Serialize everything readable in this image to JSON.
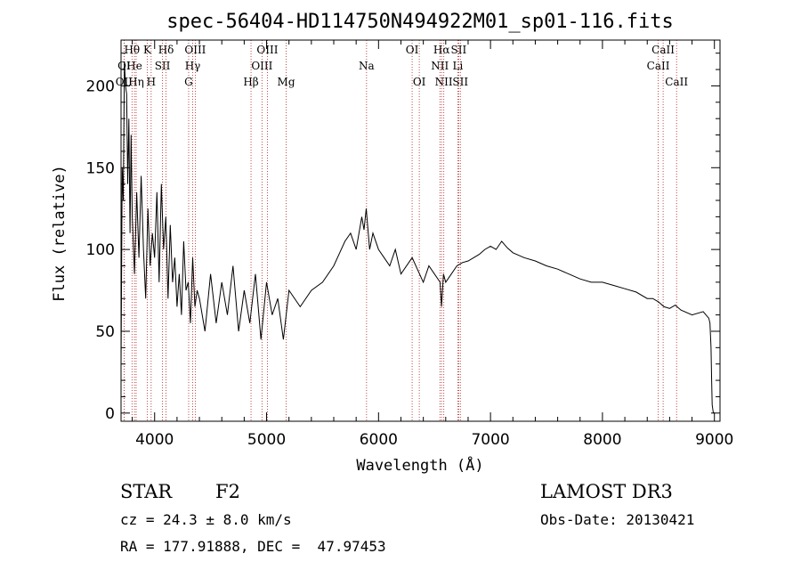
{
  "chart_data": {
    "type": "line",
    "title": "spec-56404-HD114750N494922M01_sp01-116.fits",
    "xlabel": "Wavelength (Å)",
    "ylabel": "Flux (relative)",
    "xlim": [
      3700,
      9050
    ],
    "ylim": [
      -5,
      228
    ],
    "xticks": [
      4000,
      5000,
      6000,
      7000,
      8000,
      9000
    ],
    "yticks": [
      0,
      50,
      100,
      150,
      200
    ],
    "series": [
      {
        "name": "flux",
        "x": [
          3700,
          3710,
          3720,
          3730,
          3740,
          3750,
          3760,
          3770,
          3780,
          3790,
          3800,
          3820,
          3840,
          3860,
          3880,
          3900,
          3920,
          3940,
          3960,
          3980,
          4000,
          4020,
          4040,
          4060,
          4080,
          4100,
          4120,
          4140,
          4160,
          4180,
          4200,
          4220,
          4240,
          4260,
          4280,
          4300,
          4320,
          4340,
          4360,
          4380,
          4400,
          4450,
          4500,
          4550,
          4600,
          4650,
          4700,
          4750,
          4800,
          4850,
          4900,
          4950,
          5000,
          5050,
          5100,
          5150,
          5200,
          5300,
          5400,
          5500,
          5600,
          5700,
          5750,
          5800,
          5850,
          5870,
          5890,
          5920,
          5950,
          6000,
          6050,
          6100,
          6150,
          6200,
          6300,
          6400,
          6450,
          6500,
          6550,
          6563,
          6580,
          6600,
          6650,
          6700,
          6750,
          6800,
          6850,
          6900,
          6950,
          7000,
          7050,
          7100,
          7150,
          7200,
          7300,
          7400,
          7500,
          7600,
          7700,
          7800,
          7900,
          8000,
          8100,
          8200,
          8300,
          8400,
          8450,
          8500,
          8550,
          8600,
          8650,
          8700,
          8800,
          8900,
          8950,
          8960,
          8970,
          8975,
          8980,
          8990
        ],
        "values": [
          28,
          150,
          130,
          215,
          200,
          195,
          140,
          180,
          110,
          170,
          120,
          85,
          135,
          95,
          145,
          100,
          70,
          125,
          90,
          110,
          95,
          135,
          80,
          140,
          100,
          120,
          70,
          115,
          80,
          95,
          65,
          85,
          60,
          105,
          75,
          80,
          55,
          95,
          65,
          75,
          70,
          50,
          85,
          55,
          80,
          60,
          90,
          50,
          75,
          55,
          85,
          45,
          80,
          60,
          70,
          45,
          75,
          65,
          75,
          80,
          90,
          105,
          110,
          100,
          120,
          112,
          125,
          100,
          110,
          100,
          95,
          90,
          100,
          85,
          95,
          80,
          90,
          85,
          80,
          65,
          85,
          80,
          85,
          90,
          92,
          93,
          95,
          97,
          100,
          102,
          100,
          105,
          101,
          98,
          95,
          93,
          90,
          88,
          85,
          82,
          80,
          80,
          78,
          76,
          74,
          70,
          70,
          68,
          65,
          64,
          66,
          63,
          60,
          62,
          58,
          55,
          40,
          20,
          5,
          0
        ]
      }
    ],
    "spectral_lines": [
      {
        "label": "OII",
        "x": 3727,
        "row": 2
      },
      {
        "label": "OI",
        "x": 3727,
        "row": 1
      },
      {
        "label": "Hθ",
        "x": 3798,
        "row": 0
      },
      {
        "label": "He",
        "x": 3820,
        "row": 1
      },
      {
        "label": "Hη",
        "x": 3835,
        "row": 2
      },
      {
        "label": "K",
        "x": 3934,
        "row": 0
      },
      {
        "label": "H",
        "x": 3969,
        "row": 2
      },
      {
        "label": "SII",
        "x": 4070,
        "row": 1
      },
      {
        "label": "Hδ",
        "x": 4102,
        "row": 0
      },
      {
        "label": "OIII",
        "x": 4363,
        "row": 0
      },
      {
        "label": "Hγ",
        "x": 4340,
        "row": 1
      },
      {
        "label": "G",
        "x": 4304,
        "row": 2
      },
      {
        "label": "Hβ",
        "x": 4861,
        "row": 2
      },
      {
        "label": "OIII",
        "x": 5007,
        "row": 0
      },
      {
        "label": "OIII",
        "x": 4959,
        "row": 1
      },
      {
        "label": "Mg",
        "x": 5175,
        "row": 2
      },
      {
        "label": "Na",
        "x": 5893,
        "row": 1
      },
      {
        "label": "OI",
        "x": 6300,
        "row": 0
      },
      {
        "label": "OI",
        "x": 6364,
        "row": 2
      },
      {
        "label": "Hα",
        "x": 6563,
        "row": 0
      },
      {
        "label": "NII",
        "x": 6548,
        "row": 1
      },
      {
        "label": "NII",
        "x": 6583,
        "row": 2
      },
      {
        "label": "SII",
        "x": 6716,
        "row": 0
      },
      {
        "label": "Li",
        "x": 6708,
        "row": 1
      },
      {
        "label": "SII",
        "x": 6731,
        "row": 2
      },
      {
        "label": "CaII",
        "x": 8542,
        "row": 0
      },
      {
        "label": "CaII",
        "x": 8498,
        "row": 1
      },
      {
        "label": "CaII",
        "x": 8662,
        "row": 2
      }
    ]
  },
  "info": {
    "class_label": "STAR",
    "subclass": "F2",
    "survey": "LAMOST DR3",
    "cz": "cz = 24.3 ± 8.0 km/s",
    "obs_date": "Obs-Date: 20130421",
    "coords": "RA = 177.91888, DEC =  47.97453"
  },
  "colors": {
    "line": "#000000",
    "marker": "#b22222",
    "axis": "#000000"
  }
}
